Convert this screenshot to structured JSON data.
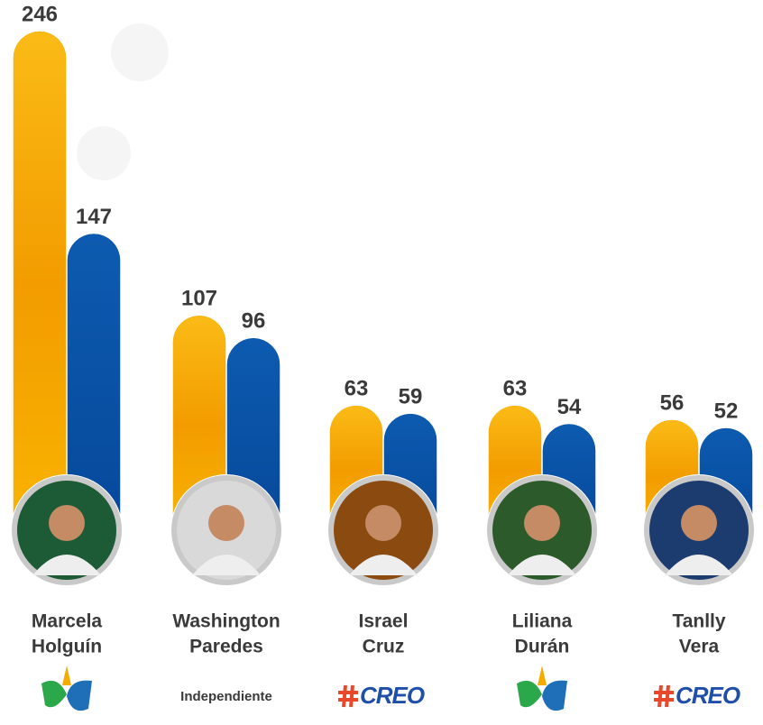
{
  "chart_data": {
    "type": "bar",
    "categories": [
      [
        "Marcela",
        "Holguín"
      ],
      [
        "Washington",
        "Paredes"
      ],
      [
        "Israel",
        "Cruz"
      ],
      [
        "Liliana",
        "Durán"
      ],
      [
        "Tanlly",
        "Vera"
      ]
    ],
    "series": [
      {
        "color": "#f6ab00",
        "values": [
          246,
          107,
          63,
          63,
          56
        ]
      },
      {
        "color": "#0a54a5",
        "values": [
          147,
          96,
          59,
          54,
          52
        ]
      }
    ],
    "parties": [
      null,
      "Independiente",
      "CREO",
      null,
      "CREO"
    ]
  }
}
